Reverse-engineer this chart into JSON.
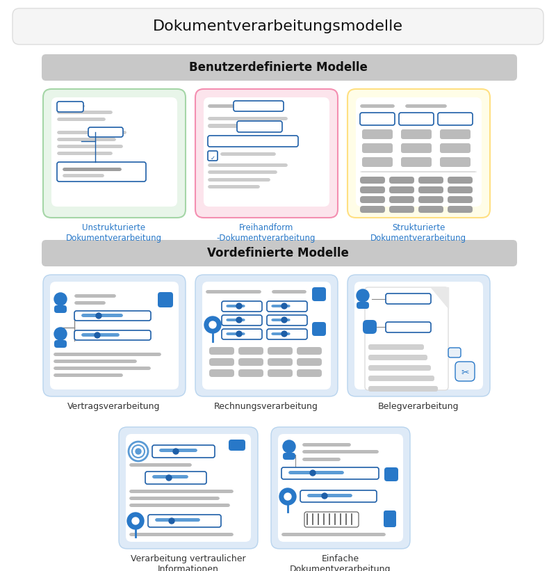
{
  "title": "Dokumentverarbeitungsmodelle",
  "section1_title": "Benutzerdefinierte Modelle",
  "section2_title": "Vordefinierte Modelle",
  "custom_models": [
    {
      "label": "Unstrukturierte\nDokumentverarbeitung",
      "bg_color": "#e8f5e9",
      "border_color": "#a5d6a7",
      "label_color": "#2878c8"
    },
    {
      "label": "Freihandform\n-Dokumentverarbeitung",
      "bg_color": "#fce4ec",
      "border_color": "#f48fb1",
      "label_color": "#2878c8"
    },
    {
      "label": "Strukturierte\nDokumentverarbeitung",
      "bg_color": "#fffde7",
      "border_color": "#ffe082",
      "label_color": "#2878c8"
    }
  ],
  "predefined_models_row1": [
    {
      "label": "Vertragsverarbeitung",
      "bg_color": "#deeaf7",
      "border_color": "#b8d4ee",
      "label_color": "#333333"
    },
    {
      "label": "Rechnungsverarbeitung",
      "bg_color": "#deeaf7",
      "border_color": "#b8d4ee",
      "label_color": "#333333"
    },
    {
      "label": "Belegverarbeitung",
      "bg_color": "#deeaf7",
      "border_color": "#b8d4ee",
      "label_color": "#333333"
    }
  ],
  "predefined_models_row2": [
    {
      "label": "Verarbeitung vertraulicher\nInformationen",
      "bg_color": "#deeaf7",
      "border_color": "#b8d4ee",
      "label_color": "#333333"
    },
    {
      "label": "Einfache\nDokumentverarbeitung",
      "bg_color": "#deeaf7",
      "border_color": "#b8d4ee",
      "label_color": "#333333"
    }
  ],
  "bg_color": "#ffffff",
  "title_box_bg": "#f5f5f5",
  "section_band_bg": "#c8c8c8",
  "predefined_area_bg": "#f0f0f0",
  "bar_gray": "#c0c0c0",
  "bar_dark_gray": "#9e9e9e",
  "bar_blue": "#1e5fa8",
  "bar_light_blue": "#5b9bd5",
  "white": "#ffffff"
}
